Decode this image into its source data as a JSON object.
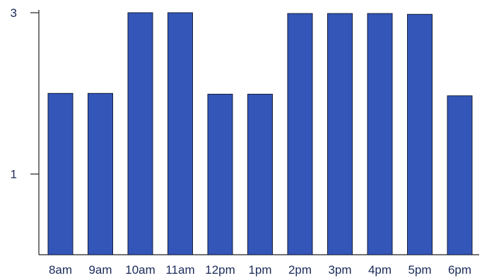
{
  "chart_data": {
    "type": "bar",
    "categories": [
      "8am",
      "9am",
      "10am",
      "11am",
      "12pm",
      "1pm",
      "2pm",
      "3pm",
      "4pm",
      "5pm",
      "6pm"
    ],
    "values": [
      2.0,
      2.0,
      3.0,
      3.0,
      1.99,
      1.99,
      2.99,
      2.99,
      2.99,
      2.98,
      1.97
    ],
    "title": "",
    "xlabel": "",
    "ylabel": "",
    "ylim": [
      0,
      3
    ],
    "yticks": [
      1,
      3
    ],
    "grid": false,
    "bar_color": "#3356b8"
  }
}
